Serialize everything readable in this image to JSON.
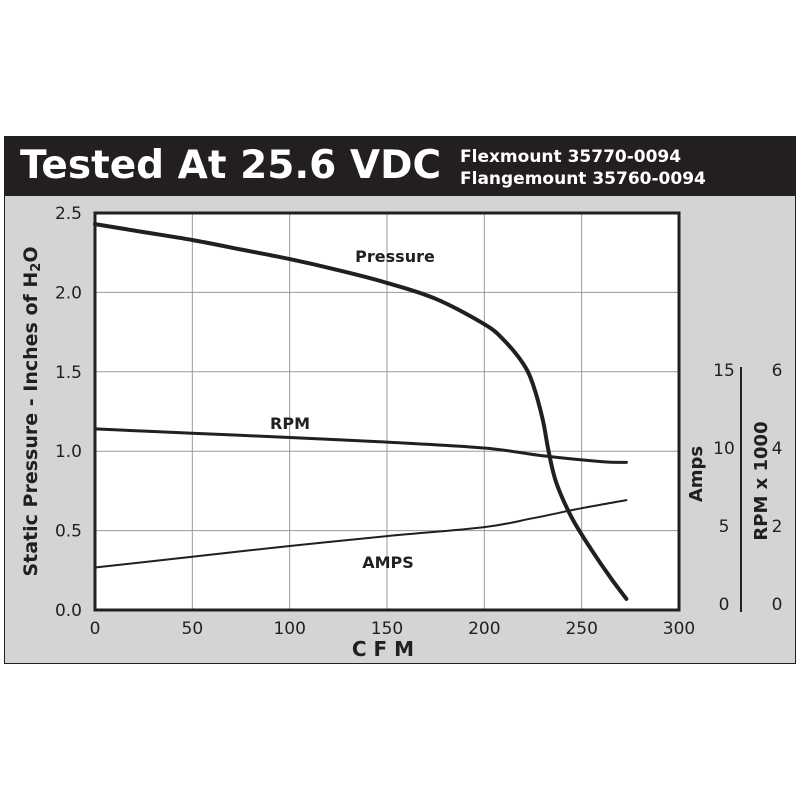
{
  "header": {
    "title": "Tested At 25.6 VDC",
    "models": [
      "Flexmount 35770-0094",
      "Flangemount 35760-0094"
    ]
  },
  "colors": {
    "header_bg": "#231f20",
    "panel_bg": "#d4d4d4",
    "plot_bg": "#ffffff",
    "line": "#231f20",
    "grid": "#9a9a9a"
  },
  "chart_data": {
    "type": "line",
    "title": "Tested At 25.6 VDC",
    "xlabel": "C F M",
    "ylabel": "Static Pressure - Inches of H2O",
    "xlim": [
      0,
      300
    ],
    "ylim": [
      0,
      2.5
    ],
    "x_ticks": [
      "0",
      "50",
      "100",
      "150",
      "200",
      "250",
      "300"
    ],
    "y_ticks": [
      "0.0",
      "0.5",
      "1.0",
      "1.5",
      "2.0",
      "2.5"
    ],
    "grid": true,
    "secondary_axes": [
      {
        "label": "Amps",
        "ticks": [
          "0",
          "5",
          "10",
          "15"
        ],
        "range": [
          0,
          15
        ]
      },
      {
        "label": "RPM x 1000",
        "ticks": [
          "0",
          "2",
          "4",
          "6"
        ],
        "range": [
          0,
          6
        ]
      }
    ],
    "series": [
      {
        "name": "Pressure",
        "axis": "left",
        "x": [
          0,
          25,
          50,
          75,
          100,
          125,
          150,
          175,
          200,
          210,
          220,
          225,
          230,
          233,
          237,
          245,
          255,
          265,
          273
        ],
        "y": [
          2.43,
          2.38,
          2.33,
          2.27,
          2.21,
          2.14,
          2.06,
          1.96,
          1.8,
          1.7,
          1.55,
          1.42,
          1.2,
          1.0,
          0.8,
          0.58,
          0.38,
          0.2,
          0.07
        ]
      },
      {
        "name": "RPM",
        "axis": "rpm_x1000",
        "x": [
          0,
          50,
          100,
          150,
          200,
          230,
          260,
          273
        ],
        "y": [
          4.49,
          4.38,
          4.27,
          4.15,
          4.0,
          3.8,
          3.65,
          3.63
        ]
      },
      {
        "name": "AMPS",
        "axis": "amps",
        "x": [
          0,
          50,
          100,
          150,
          200,
          225,
          250,
          273
        ],
        "y": [
          2.34,
          3.03,
          3.72,
          4.35,
          4.93,
          5.5,
          6.14,
          6.66
        ]
      }
    ]
  }
}
